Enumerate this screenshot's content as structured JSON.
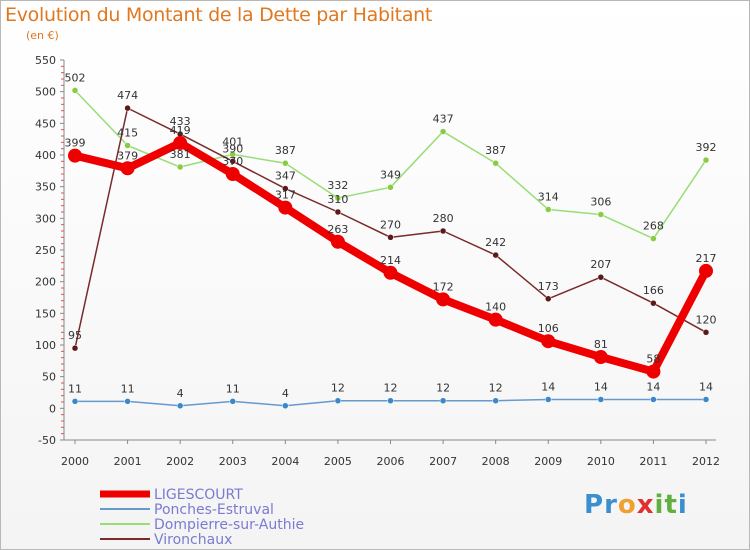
{
  "title": "Evolution du Montant de la Dette par Habitant",
  "subtitle": "(en €)",
  "logo": {
    "letters": [
      "P",
      "r",
      "o",
      "x",
      "i",
      "t",
      "i"
    ],
    "colors": [
      "#3a8fd0",
      "#3a8fd0",
      "#f0a030",
      "#e03030",
      "#60b040",
      "#60b040",
      "#3a8fd0"
    ]
  },
  "chart_data": {
    "type": "line",
    "x": [
      "2000",
      "2001",
      "2002",
      "2003",
      "2004",
      "2005",
      "2006",
      "2007",
      "2008",
      "2009",
      "2010",
      "2011",
      "2012"
    ],
    "ylim": [
      -50,
      550
    ],
    "yticks": [
      "-50",
      "0",
      "50",
      "100",
      "150",
      "200",
      "250",
      "300",
      "350",
      "400",
      "450",
      "500",
      "550"
    ],
    "grid": false,
    "legend_position": "bottom-left",
    "series": [
      {
        "name": "LIGESCOURT",
        "color": "#ee0000",
        "width": 8,
        "values": [
          399,
          379,
          419,
          370,
          317,
          263,
          214,
          172,
          140,
          106,
          81,
          58,
          217
        ],
        "labels": [
          "399",
          "379",
          "419",
          "370",
          "317",
          "263",
          "214",
          "172",
          "140",
          "106",
          "81",
          "58",
          "217"
        ]
      },
      {
        "name": "Ponches-Estruval",
        "color": "#6699cc",
        "width": 1.5,
        "values": [
          11,
          11,
          4,
          11,
          4,
          12,
          12,
          12,
          12,
          14,
          14,
          14,
          14
        ],
        "labels": [
          "11",
          "11",
          "4",
          "11",
          "4",
          "12",
          "12",
          "12",
          "12",
          "14",
          "14",
          "14",
          "14"
        ]
      },
      {
        "name": "Dompierre-sur-Authie",
        "color": "#99dd77",
        "width": 1.5,
        "values": [
          502,
          415,
          381,
          401,
          387,
          332,
          349,
          437,
          387,
          314,
          306,
          268,
          392
        ],
        "labels": [
          "502",
          "415",
          "381",
          "401",
          "387",
          "332",
          "349",
          "437",
          "387",
          "314",
          "306",
          "268",
          "392"
        ]
      },
      {
        "name": "Vironchaux",
        "color": "#7a2a2a",
        "width": 1.5,
        "values": [
          95,
          474,
          433,
          390,
          347,
          310,
          270,
          280,
          242,
          173,
          207,
          166,
          120
        ],
        "labels": [
          "95",
          "474",
          "433",
          "390",
          "347",
          "310",
          "270",
          "280",
          "242",
          "173",
          "207",
          "166",
          "120"
        ]
      }
    ]
  }
}
